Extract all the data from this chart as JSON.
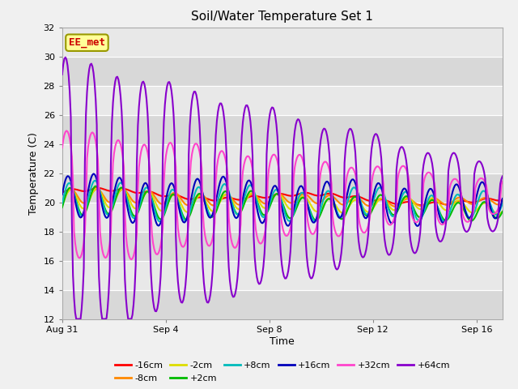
{
  "title": "Soil/Water Temperature Set 1",
  "xlabel": "Time",
  "ylabel": "Temperature (C)",
  "ylim": [
    12,
    32
  ],
  "yticks": [
    12,
    14,
    16,
    18,
    20,
    22,
    24,
    26,
    28,
    30,
    32
  ],
  "xlim_days": [
    0,
    17
  ],
  "x_tick_labels": [
    "Aug 31",
    "Sep 4",
    "Sep 8",
    "Sep 12",
    "Sep 16"
  ],
  "x_tick_positions": [
    0,
    4,
    8,
    12,
    16
  ],
  "plot_bg_color": "#e8e8e8",
  "fig_bg_color": "#f0f0f0",
  "grid_color": "#ffffff",
  "series": {
    "-16cm": {
      "color": "#ff0000",
      "lw": 1.5
    },
    "-8cm": {
      "color": "#ff8800",
      "lw": 1.5
    },
    "-2cm": {
      "color": "#dddd00",
      "lw": 1.5
    },
    "+2cm": {
      "color": "#00bb00",
      "lw": 1.5
    },
    "+8cm": {
      "color": "#00bbbb",
      "lw": 1.5
    },
    "+16cm": {
      "color": "#0000bb",
      "lw": 1.5
    },
    "+32cm": {
      "color": "#ff44cc",
      "lw": 1.5
    },
    "+64cm": {
      "color": "#8800cc",
      "lw": 1.5
    }
  },
  "annotation_text": "EE_met",
  "annotation_color": "#cc0000",
  "annotation_bg": "#ffff99",
  "annotation_border": "#999900",
  "legend_order": [
    "-16cm",
    "-8cm",
    "-2cm",
    "+2cm",
    "+8cm",
    "+16cm",
    "+32cm",
    "+64cm"
  ]
}
